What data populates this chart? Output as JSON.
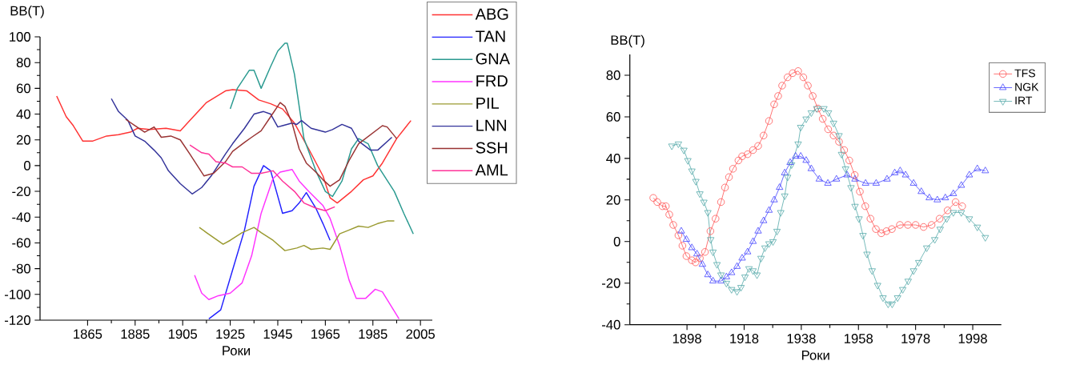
{
  "chart_data": [
    {
      "type": "line",
      "xlabel": "Роки",
      "ylabel": "BB(T)",
      "xlim": [
        1845,
        2010
      ],
      "ylim": [
        -120,
        100
      ],
      "xticks": [
        1865,
        1885,
        1905,
        1925,
        1945,
        1965,
        1985,
        2005
      ],
      "yticks": [
        100,
        80,
        60,
        40,
        20,
        0,
        -20,
        -40,
        -60,
        -80,
        -100,
        -120
      ],
      "grid": false,
      "legend": "top right",
      "marker": "none",
      "line_style": "solid",
      "series": [
        {
          "name": "ABG",
          "color": "#ff3333",
          "x": [
            1852,
            1856,
            1859,
            1863,
            1867,
            1873,
            1878,
            1883,
            1886,
            1891,
            1898,
            1904,
            1908,
            1915,
            1923,
            1926,
            1932,
            1937,
            1942,
            1947,
            1952,
            1958,
            1964,
            1967,
            1970,
            1976,
            1981,
            1985,
            1989,
            1995,
            2001
          ],
          "values": [
            54,
            38,
            31,
            19,
            19,
            23,
            24,
            26,
            29,
            28,
            29,
            27,
            35,
            49,
            58,
            59,
            58,
            51,
            48,
            44,
            33,
            13,
            -8,
            -25,
            -29,
            -20,
            -11,
            -8,
            2,
            21,
            35
          ]
        },
        {
          "name": "TAN",
          "color": "#2222ff",
          "x": [
            1916,
            1921,
            1926,
            1931,
            1935,
            1939,
            1942,
            1947,
            1951,
            1954,
            1957,
            1961,
            1964,
            1967
          ],
          "values": [
            -119,
            -112,
            -81,
            -50,
            -16,
            0,
            -4,
            -37,
            -35,
            -29,
            -21,
            -33,
            -45,
            -58
          ]
        },
        {
          "name": "GNA",
          "color": "#2a9a90",
          "x": [
            1925,
            1928,
            1933,
            1935,
            1938,
            1942,
            1945,
            1948,
            1949,
            1952,
            1956,
            1961,
            1965,
            1968,
            1972,
            1976,
            1979,
            1983,
            1987,
            1994,
            1998,
            2002
          ],
          "values": [
            44,
            60,
            74,
            74,
            60,
            77,
            89,
            95,
            95,
            71,
            21,
            -4,
            -20,
            -24,
            -12,
            13,
            21,
            17,
            0,
            -20,
            -37,
            -53
          ]
        },
        {
          "name": "FRD",
          "color": "#ff33ff",
          "x": [
            1910,
            1913,
            1916,
            1920,
            1925,
            1930,
            1934,
            1938,
            1943,
            1946,
            1951,
            1954,
            1958,
            1964,
            1967,
            1971,
            1975,
            1978,
            1982,
            1986,
            1989,
            1996
          ],
          "values": [
            -85,
            -99,
            -104,
            -101,
            -99,
            -91,
            -70,
            -37,
            -10,
            -5,
            -3,
            -12,
            -20,
            -31,
            -41,
            -62,
            -89,
            -103,
            -103,
            -96,
            -98,
            -119
          ]
        },
        {
          "name": "PIL",
          "color": "#9a9a30",
          "x": [
            1912,
            1915,
            1922,
            1925,
            1930,
            1935,
            1938,
            1943,
            1948,
            1953,
            1956,
            1959,
            1964,
            1967,
            1971,
            1975,
            1979,
            1983,
            1987,
            1991,
            1994
          ],
          "values": [
            -48,
            -52,
            -61,
            -58,
            -52,
            -48,
            -52,
            -58,
            -66,
            -64,
            -62,
            -65,
            -64,
            -65,
            -53,
            -50,
            -47,
            -48,
            -45,
            -43,
            -43
          ]
        },
        {
          "name": "LNN",
          "color": "#33339a",
          "x": [
            1875,
            1878,
            1882,
            1885,
            1889,
            1893,
            1896,
            1899,
            1904,
            1909,
            1913,
            1917,
            1923,
            1926,
            1931,
            1935,
            1939,
            1942,
            1945,
            1947,
            1951,
            1953,
            1955,
            1959,
            1965,
            1968,
            1972,
            1976,
            1979,
            1984,
            1987,
            1993
          ],
          "values": [
            52,
            42,
            35,
            23,
            19,
            12,
            6,
            -4,
            -14,
            -22,
            -17,
            -8,
            9,
            17,
            29,
            40,
            42,
            40,
            30,
            31,
            33,
            32,
            35,
            29,
            26,
            28,
            32,
            29,
            19,
            12,
            12,
            22
          ]
        },
        {
          "name": "SSH",
          "color": "#993333",
          "x": [
            1881,
            1885,
            1889,
            1893,
            1896,
            1900,
            1904,
            1908,
            1914,
            1918,
            1923,
            1926,
            1931,
            1934,
            1938,
            1942,
            1946,
            1948,
            1951,
            1954,
            1957,
            1961,
            1964,
            1967,
            1971,
            1975,
            1979,
            1984,
            1989,
            1991,
            1995
          ],
          "values": [
            36,
            31,
            26,
            30,
            22,
            23,
            20,
            9,
            -8,
            -6,
            3,
            11,
            18,
            22,
            27,
            38,
            49,
            46,
            33,
            13,
            2,
            -5,
            -11,
            -16,
            -11,
            4,
            17,
            24,
            31,
            30,
            21
          ]
        },
        {
          "name": "AML",
          "color": "#ff3399",
          "x": [
            1908,
            1913,
            1916,
            1919,
            1923,
            1926,
            1930,
            1934,
            1938,
            1943,
            1947,
            1952,
            1956,
            1961,
            1965,
            1969
          ],
          "values": [
            16,
            10,
            9,
            3,
            2,
            -1,
            -1,
            -6,
            -6,
            -4,
            -12,
            -20,
            -29,
            -33,
            -35,
            -32
          ]
        }
      ]
    },
    {
      "type": "line",
      "xlabel": "Роки",
      "ylabel": "BB(T)",
      "xlim": [
        1878,
        2008
      ],
      "ylim": [
        -40,
        90
      ],
      "xticks": [
        1898,
        1918,
        1938,
        1958,
        1978,
        1998
      ],
      "yticks": [
        -40,
        -20,
        0,
        20,
        40,
        60,
        80
      ],
      "grid": false,
      "legend": "top right",
      "line_style": "solid",
      "series": [
        {
          "name": "TFS",
          "color": "#ff5555",
          "marker": "circle",
          "x": [
            1886.2,
            1887.6,
            1889.4,
            1890.6,
            1891.8,
            1893.2,
            1895,
            1896.4,
            1897.8,
            1899.7,
            1901,
            1902.5,
            1904.3,
            1906.2,
            1908,
            1909.9,
            1911.3,
            1912.7,
            1914.1,
            1916,
            1917.3,
            1919.2,
            1921.1,
            1922.9,
            1924.8,
            1926.7,
            1928.5,
            1929.9,
            1931.3,
            1933.2,
            1935,
            1936.9,
            1938.7,
            1940.3,
            1942,
            1943.8,
            1945.5,
            1947.4,
            1949.3,
            1951.2,
            1953,
            1954.8,
            1956.7,
            1958.5,
            1960.4,
            1962.2,
            1964.1,
            1966,
            1967.8,
            1969.7,
            1972.5,
            1975.3,
            1978,
            1980.8,
            1983.6,
            1986.4,
            1989.2,
            1992,
            1994.3
          ],
          "values": [
            21,
            19,
            17,
            17,
            13,
            8,
            3,
            -2,
            -7,
            -9,
            -10,
            -8,
            -5,
            5,
            11,
            19,
            26,
            31,
            35,
            39,
            41,
            42,
            44,
            46,
            51,
            58,
            66,
            70,
            75,
            79,
            81,
            82,
            79,
            75,
            70,
            64,
            59,
            54,
            51,
            48,
            44,
            39,
            32,
            24,
            17,
            11,
            6,
            4,
            5,
            6,
            8,
            8,
            8,
            7,
            8,
            11,
            15,
            19,
            17
          ]
        },
        {
          "name": "NGK",
          "color": "#4444ff",
          "marker": "triangle",
          "x": [
            1896,
            1897.8,
            1899.7,
            1901.5,
            1903.4,
            1905.3,
            1907.1,
            1909.9,
            1911.8,
            1913.6,
            1915.5,
            1917.3,
            1919.2,
            1921.1,
            1922.9,
            1924.8,
            1926.7,
            1928.5,
            1930.4,
            1932.2,
            1934.1,
            1936,
            1937.8,
            1939.7,
            1941.5,
            1944.3,
            1947.3,
            1950.3,
            1954,
            1956.8,
            1960.5,
            1964.2,
            1968,
            1970.7,
            1972.6,
            1974.5,
            1977.3,
            1980,
            1982.8,
            1985.6,
            1988.4,
            1991.2,
            1994,
            1996.8,
            1999.6,
            2002.4
          ],
          "values": [
            5,
            1,
            -3,
            -6,
            -11,
            -16,
            -19,
            -19,
            -17,
            -15,
            -12,
            -8,
            -5,
            0,
            5,
            10,
            15,
            20,
            26,
            33,
            38,
            41,
            41,
            39,
            35,
            30,
            28,
            30,
            32,
            30,
            28,
            28,
            30,
            33,
            34,
            32,
            28,
            24,
            21,
            20,
            21,
            23,
            27,
            32,
            35,
            34
          ]
        },
        {
          "name": "IRT",
          "color": "#55aaaa",
          "marker": "triangle-down",
          "x": [
            1892.7,
            1895,
            1896.9,
            1898.3,
            1899.7,
            1901.1,
            1902.5,
            1903.9,
            1905.3,
            1906.3,
            1907.1,
            1908.5,
            1909.9,
            1911.8,
            1913.6,
            1915.5,
            1916.9,
            1918.3,
            1919.7,
            1921.1,
            1922.5,
            1923.9,
            1925.3,
            1926.7,
            1928.1,
            1929.5,
            1930.8,
            1932.2,
            1933.2,
            1934.6,
            1936.9,
            1937.8,
            1939.7,
            1941.5,
            1943.4,
            1945.9,
            1947.5,
            1949.3,
            1951.2,
            1952.1,
            1953.5,
            1955.4,
            1956.8,
            1958.2,
            1959.6,
            1961,
            1962.8,
            1964.7,
            1966.6,
            1968.4,
            1969.8,
            1971.7,
            1973.5,
            1975.4,
            1977.3,
            1979.1,
            1981.9,
            1984.7,
            1986.6,
            1988.9,
            1991.2,
            1994,
            1996.8,
            1999.6,
            2002.4
          ],
          "values": [
            46,
            47,
            44,
            39,
            34,
            29,
            23,
            19,
            14,
            1,
            -5,
            -11,
            -16,
            -20,
            -23,
            -24,
            -22,
            -17,
            -13,
            -14,
            -16,
            -8,
            -3,
            -1,
            0,
            5,
            14,
            22,
            31,
            37,
            47,
            55,
            59,
            62,
            64,
            64,
            62,
            57,
            51,
            42,
            35,
            26,
            17,
            11,
            3,
            -6,
            -14,
            -21,
            -27,
            -30,
            -30,
            -27,
            -23,
            -19,
            -14,
            -10,
            -3,
            1,
            6,
            11,
            14,
            14,
            11,
            7,
            2
          ]
        }
      ]
    }
  ]
}
